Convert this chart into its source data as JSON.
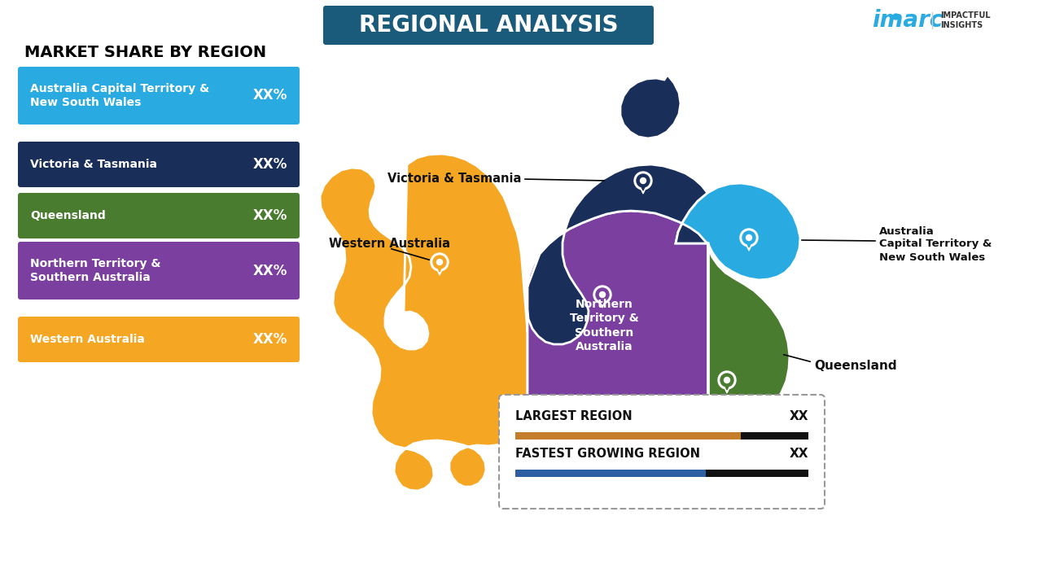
{
  "title": "REGIONAL ANALYSIS",
  "title_bg_color": "#1a5a7a",
  "title_text_color": "#ffffff",
  "background_color": "#ffffff",
  "left_panel_title": "MARKET SHARE BY REGION",
  "regions": [
    {
      "name": "Australia Capital Territory &\nNew South Wales",
      "value": "XX%",
      "color": "#29abe2"
    },
    {
      "name": "Victoria & Tasmania",
      "value": "XX%",
      "color": "#1a2e5a"
    },
    {
      "name": "Queensland",
      "value": "XX%",
      "color": "#4a7c2f"
    },
    {
      "name": "Northern Territory &\nSouthern Australia",
      "value": "XX%",
      "color": "#7b3fa0"
    },
    {
      "name": "Western Australia",
      "value": "XX%",
      "color": "#f5a623"
    }
  ],
  "legend_largest_label": "LARGEST REGION",
  "legend_largest_value": "XX",
  "legend_largest_bar_color": "#c47d2a",
  "legend_fastest_label": "FASTEST GROWING REGION",
  "legend_fastest_value": "XX",
  "legend_fastest_bar_color": "#2e5fa3",
  "legend_bar_dark": "#111111",
  "map_colors": {
    "wa": "#f5a623",
    "nt_sa": "#7b3fa0",
    "qld": "#4a7c2f",
    "vic_tas": "#1a2e5a",
    "act_nsw": "#29abe2"
  },
  "imarc_color": "#29abe2",
  "map_label_color_dark": "#222222",
  "map_label_color_white": "#ffffff"
}
